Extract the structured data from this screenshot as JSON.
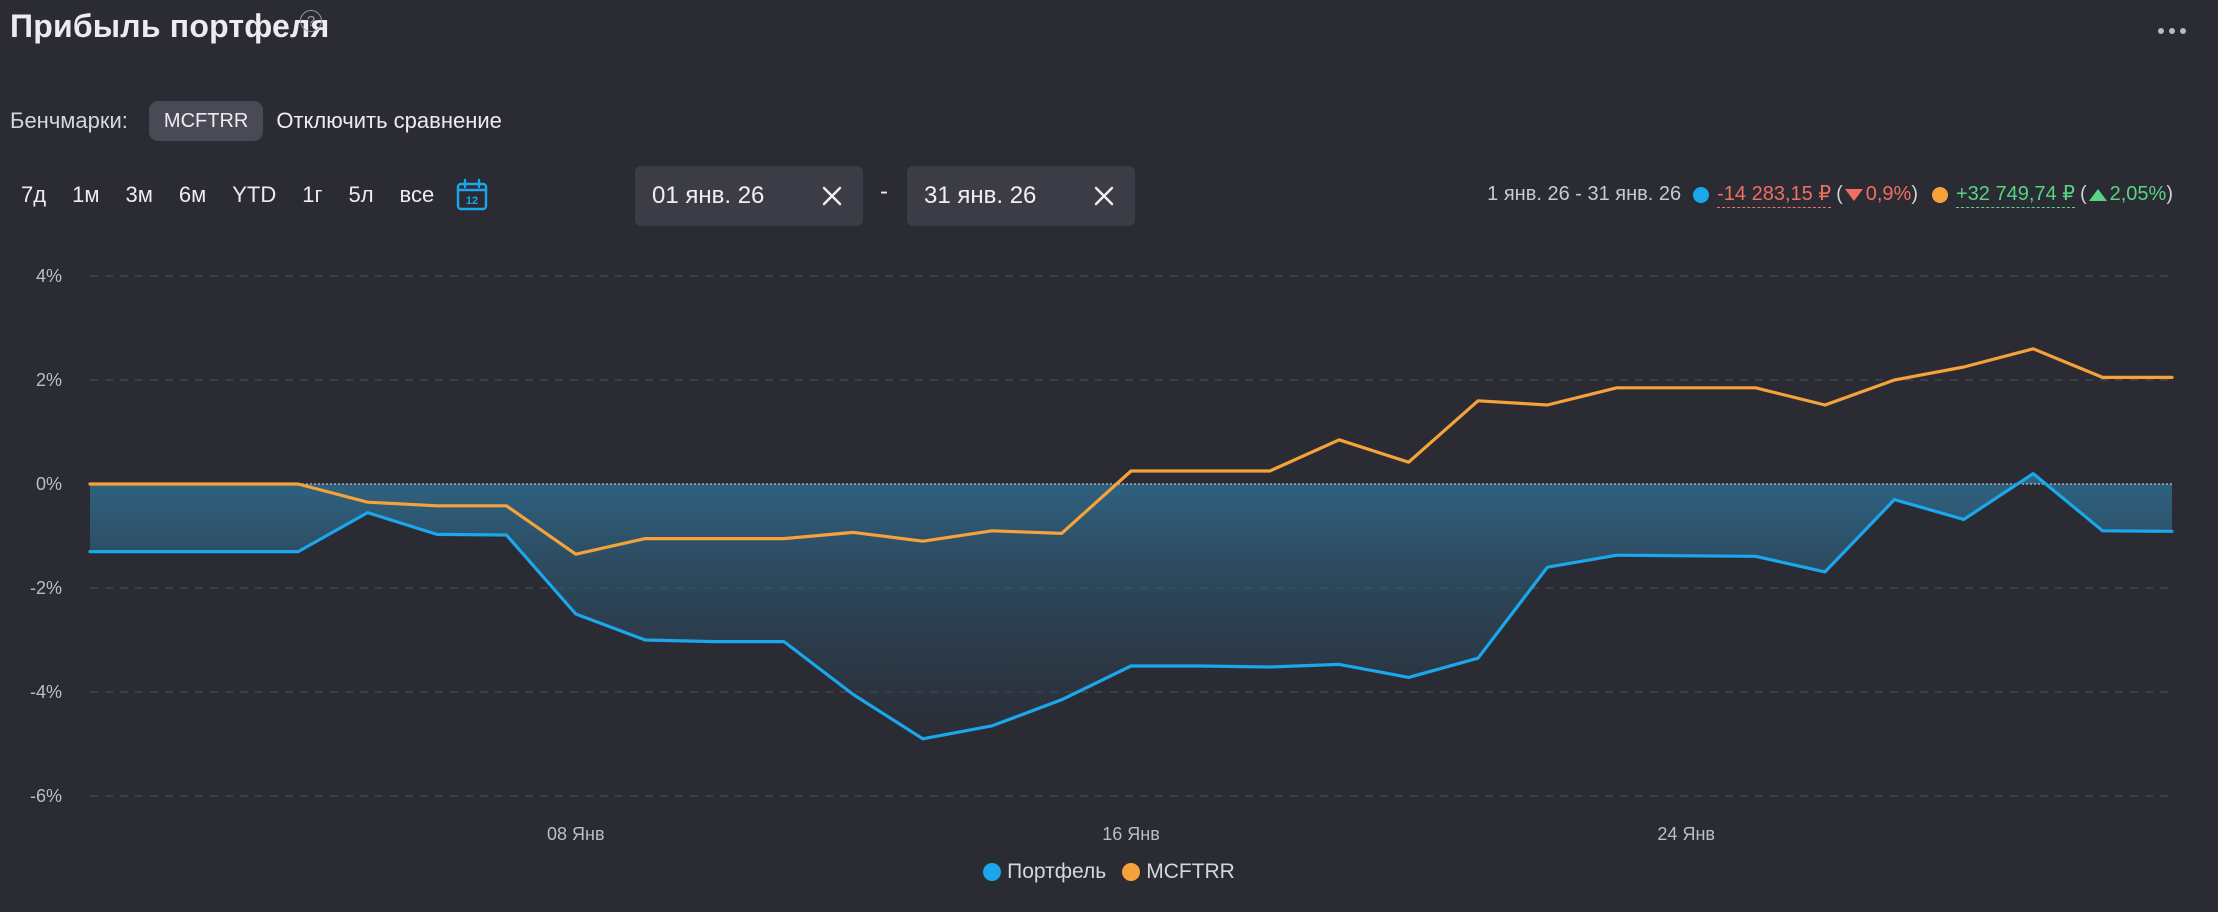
{
  "header": {
    "title": "Прибыль портфеля",
    "help_glyph": "?",
    "more_icon": "more-horizontal-icon"
  },
  "benchmarks": {
    "label": "Бенчмарки:",
    "chip": "MCFTRR",
    "disable_label": "Отключить сравнение"
  },
  "periods": [
    "7д",
    "1м",
    "3м",
    "6м",
    "YTD",
    "1г",
    "5л",
    "все"
  ],
  "calendar_day": "12",
  "date_range": {
    "from": "01 янв. 26",
    "to": "31 янв. 26",
    "separator": "-"
  },
  "summary": {
    "range": "1 янв. 26 - 31 янв. 26",
    "portfolio": {
      "value": "-14 283,15 ₽",
      "percent": "0,9%",
      "open": "(",
      "close": ")",
      "color": "#1aa7ec"
    },
    "benchmark": {
      "value": "+32 749,74 ₽",
      "percent": "2,05%",
      "open": "(",
      "close": ")",
      "color": "#f5a23a"
    }
  },
  "colors": {
    "portfolio": "#1aa7ec",
    "benchmark": "#f5a23a",
    "negative": "#f06f62",
    "positive": "#58d483",
    "background": "#2b2b33"
  },
  "chart_data": {
    "type": "line",
    "x": [
      "01.01",
      "02.01",
      "03.01",
      "04.01",
      "05.01",
      "06.01",
      "07.01",
      "08.01",
      "09.01",
      "10.01",
      "11.01",
      "12.01",
      "13.01",
      "14.01",
      "15.01",
      "16.01",
      "17.01",
      "18.01",
      "19.01",
      "20.01",
      "21.01",
      "22.01",
      "23.01",
      "24.01",
      "25.01",
      "26.01",
      "27.01",
      "28.01",
      "29.01",
      "30.01",
      "31.01"
    ],
    "x_ticks": [
      {
        "x": "08.01",
        "label": "08 Янв"
      },
      {
        "x": "16.01",
        "label": "16 Янв"
      },
      {
        "x": "24.01",
        "label": "24 Янв"
      }
    ],
    "ylim": [
      -6,
      4
    ],
    "y_ticks": [
      4,
      2,
      0,
      -2,
      -4,
      -6
    ],
    "y_tick_labels": [
      "4%",
      "2%",
      "0%",
      "-2%",
      "-4%",
      "-6%"
    ],
    "grid": true,
    "legend_position": "bottom-center",
    "series": [
      {
        "name": "Портфель",
        "color": "#1aa7ec",
        "filled_to_zero": true,
        "values": [
          -1.3,
          -1.3,
          -1.3,
          -1.3,
          -0.55,
          -0.97,
          -0.98,
          -2.5,
          -3.0,
          -3.03,
          -3.03,
          -4.05,
          -4.9,
          -4.65,
          -4.15,
          -3.5,
          -3.5,
          -3.52,
          -3.47,
          -3.72,
          -3.35,
          -1.6,
          -1.37,
          -1.38,
          -1.39,
          -1.69,
          -0.3,
          -0.68,
          0.2,
          -0.9,
          -0.91
        ]
      },
      {
        "name": "MCFTRR",
        "color": "#f5a23a",
        "filled_to_zero": false,
        "values": [
          0,
          0,
          0,
          0,
          -0.35,
          -0.42,
          -0.42,
          -1.35,
          -1.05,
          -1.05,
          -1.05,
          -0.93,
          -1.1,
          -0.9,
          -0.95,
          0.25,
          0.25,
          0.25,
          0.85,
          0.42,
          1.6,
          1.52,
          1.85,
          1.85,
          1.85,
          1.52,
          2.0,
          2.25,
          2.6,
          2.05,
          2.05
        ]
      }
    ]
  }
}
